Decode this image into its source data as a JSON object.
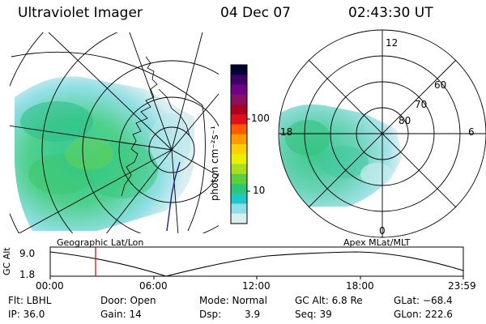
{
  "header": {
    "title": "Ultraviolet Imager",
    "date": "04 Dec 07",
    "time": "02:43:30 UT"
  },
  "colorbar": {
    "unit_label": "photon cm⁻²s⁻¹",
    "ticks": [
      "100",
      "10"
    ],
    "colors": [
      "#000033",
      "#3d0066",
      "#700088",
      "#8a1060",
      "#b00020",
      "#e0101a",
      "#ff5a00",
      "#ff9a00",
      "#ffd000",
      "#e8f000",
      "#a8e020",
      "#5ad040",
      "#28c878",
      "#20c8c8",
      "#8ee0e8",
      "#d8eef0"
    ]
  },
  "left_panel": {
    "projection_label": "Geographic Lat/Lon"
  },
  "right_panel": {
    "projection_label": "Apex MLat/MLT",
    "mlt_labels": {
      "top": "12",
      "left": "18",
      "right": "6",
      "bottom": "0"
    },
    "lat_labels": [
      "60",
      "70",
      "80"
    ]
  },
  "altitude_plot": {
    "ylabel": "GC Alt",
    "yticks": [
      "9.0",
      "1.8"
    ],
    "xticks": [
      "00:00",
      "06:00",
      "12:00",
      "18:00",
      "23:59"
    ],
    "marker_time": "02:43:30"
  },
  "info": {
    "filter": "Flt: LBHL",
    "ip": "IP: 36.0",
    "door": "Door: Open",
    "gain": "Gain: 14",
    "mode": "Mode: Normal",
    "dsp": "Dsp:",
    "dsp_value": "3.9",
    "gc_alt": "GC Alt: 6.8 Re",
    "seq": "Seq: 39",
    "glat": "GLat: −68.4",
    "glon": "GLon: 222.6"
  },
  "colors": {
    "aurora_low": "#8ee0e8",
    "aurora_mid": "#28c8a0",
    "aurora_high": "#5ad040",
    "marker": "#d00000"
  }
}
